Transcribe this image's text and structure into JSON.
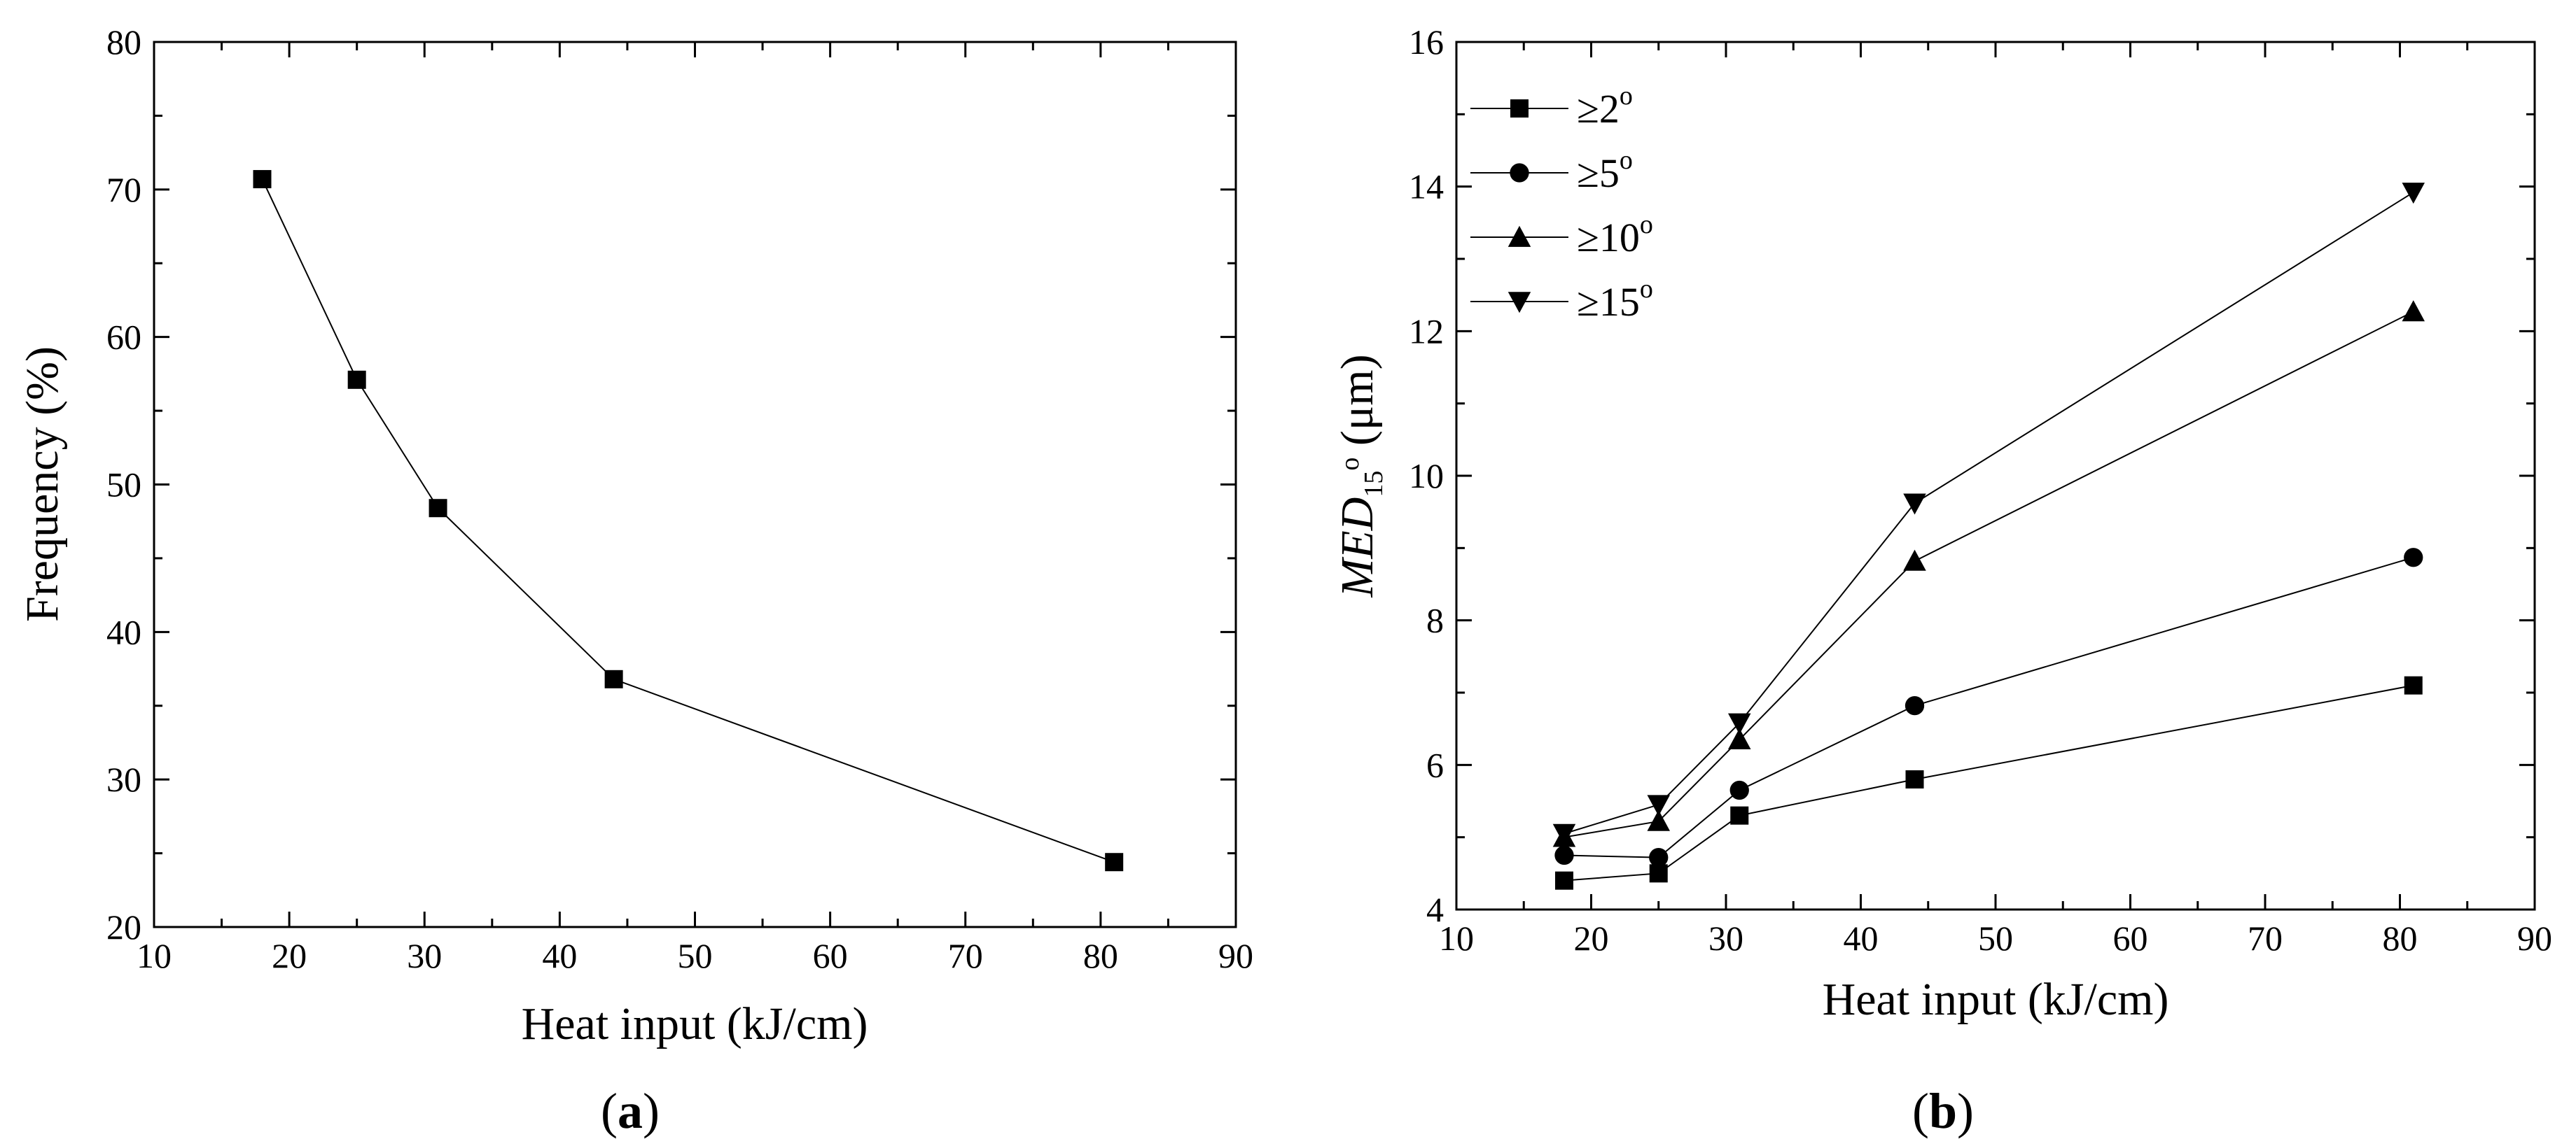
{
  "chart_data": [
    {
      "type": "line",
      "panel_label": {
        "open": "(",
        "letter": "a",
        "close": ")"
      },
      "xlabel": "Heat input (kJ/cm)",
      "ylabel": "Frequency (%)",
      "xlim": [
        10,
        90
      ],
      "ylim": [
        20,
        80
      ],
      "xticks": [
        "10",
        "20",
        "30",
        "40",
        "50",
        "60",
        "70",
        "80",
        "90"
      ],
      "yticks": [
        "20",
        "30",
        "40",
        "50",
        "60",
        "70",
        "80"
      ],
      "series": [
        {
          "name": "Frequency",
          "marker": "square",
          "x": [
            18,
            25,
            31,
            44,
            81
          ],
          "y": [
            70.7,
            57.1,
            48.4,
            36.8,
            24.4
          ]
        }
      ]
    },
    {
      "type": "line",
      "panel_label": {
        "open": "(",
        "letter": "b",
        "close": ")"
      },
      "xlabel": "Heat input (kJ/cm)",
      "ylabel": {
        "main": "MED",
        "sub": "15",
        "sup": "o",
        "unit": " (μm)"
      },
      "xlim": [
        10,
        90
      ],
      "ylim": [
        4,
        16
      ],
      "xticks": [
        "10",
        "20",
        "30",
        "40",
        "50",
        "60",
        "70",
        "80",
        "90"
      ],
      "yticks": [
        "4",
        "6",
        "8",
        "10",
        "12",
        "14",
        "16"
      ],
      "legend_position": "top-left",
      "series": [
        {
          "name": "≥2",
          "sup": "o",
          "marker": "square",
          "x": [
            18,
            25,
            31,
            44,
            81
          ],
          "y": [
            4.4,
            4.5,
            5.3,
            5.8,
            7.1
          ]
        },
        {
          "name": "≥5",
          "sup": "o",
          "marker": "circle",
          "x": [
            18,
            25,
            31,
            44,
            81
          ],
          "y": [
            4.75,
            4.72,
            5.65,
            6.82,
            8.87
          ]
        },
        {
          "name": "≥10",
          "sup": "o",
          "marker": "triangle-up",
          "x": [
            18,
            25,
            31,
            44,
            81
          ],
          "y": [
            5.0,
            5.22,
            6.35,
            8.82,
            12.27
          ]
        },
        {
          "name": "≥15",
          "sup": "o",
          "marker": "triangle-down",
          "x": [
            18,
            25,
            31,
            44,
            81
          ],
          "y": [
            5.05,
            5.45,
            6.58,
            9.62,
            13.92
          ]
        }
      ]
    }
  ]
}
